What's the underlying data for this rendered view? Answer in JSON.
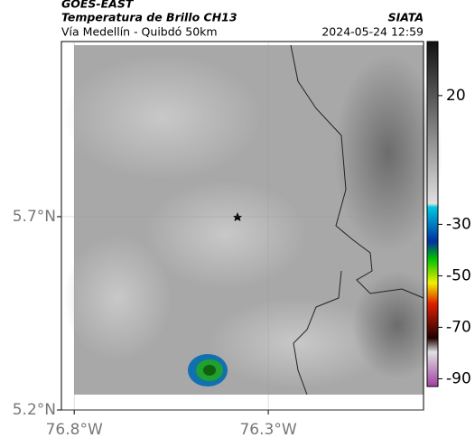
{
  "header": {
    "title": "GOES-EAST",
    "subtitle": "Temperatura de Brillo CH13",
    "region": "Vía Medellín - Quibdó 50km",
    "source": "SIATA",
    "datetime": "2024-05-24 12:59"
  },
  "map": {
    "xlim": [
      -76.833,
      -75.9
    ],
    "ylim": [
      5.2,
      6.153
    ],
    "xticks": [
      {
        "value": -76.8,
        "label": "76.8°W"
      },
      {
        "value": -76.3,
        "label": "76.3°W"
      }
    ],
    "yticks": [
      {
        "value": 5.7,
        "label": "5.7°N"
      },
      {
        "value": 5.2,
        "label": "5.2°N"
      }
    ],
    "grid": true
  },
  "colorbar": {
    "vlim": [
      -93,
      41
    ],
    "ticks": [
      20,
      -30,
      -50,
      -70,
      -90
    ]
  }
}
